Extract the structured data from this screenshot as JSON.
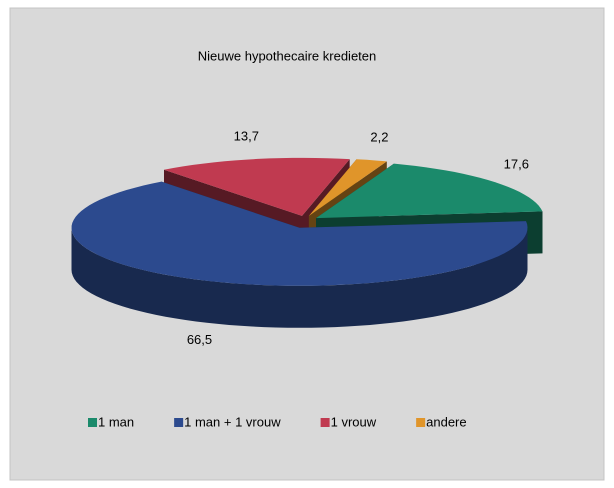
{
  "chart_data": {
    "type": "pie",
    "title": "Nieuwe hypothecaire kredieten",
    "categories": [
      "1 man",
      "1 man + 1 vrouw",
      "1 vrouw",
      "andere"
    ],
    "values": [
      17.6,
      66.5,
      13.7,
      2.2
    ],
    "value_labels": [
      "17,6",
      "66,5",
      "13,7",
      "2,2"
    ],
    "colors": [
      "#1b8a6b",
      "#2c4a8e",
      "#c03a50",
      "#e0952a"
    ],
    "legend": "bottom"
  }
}
